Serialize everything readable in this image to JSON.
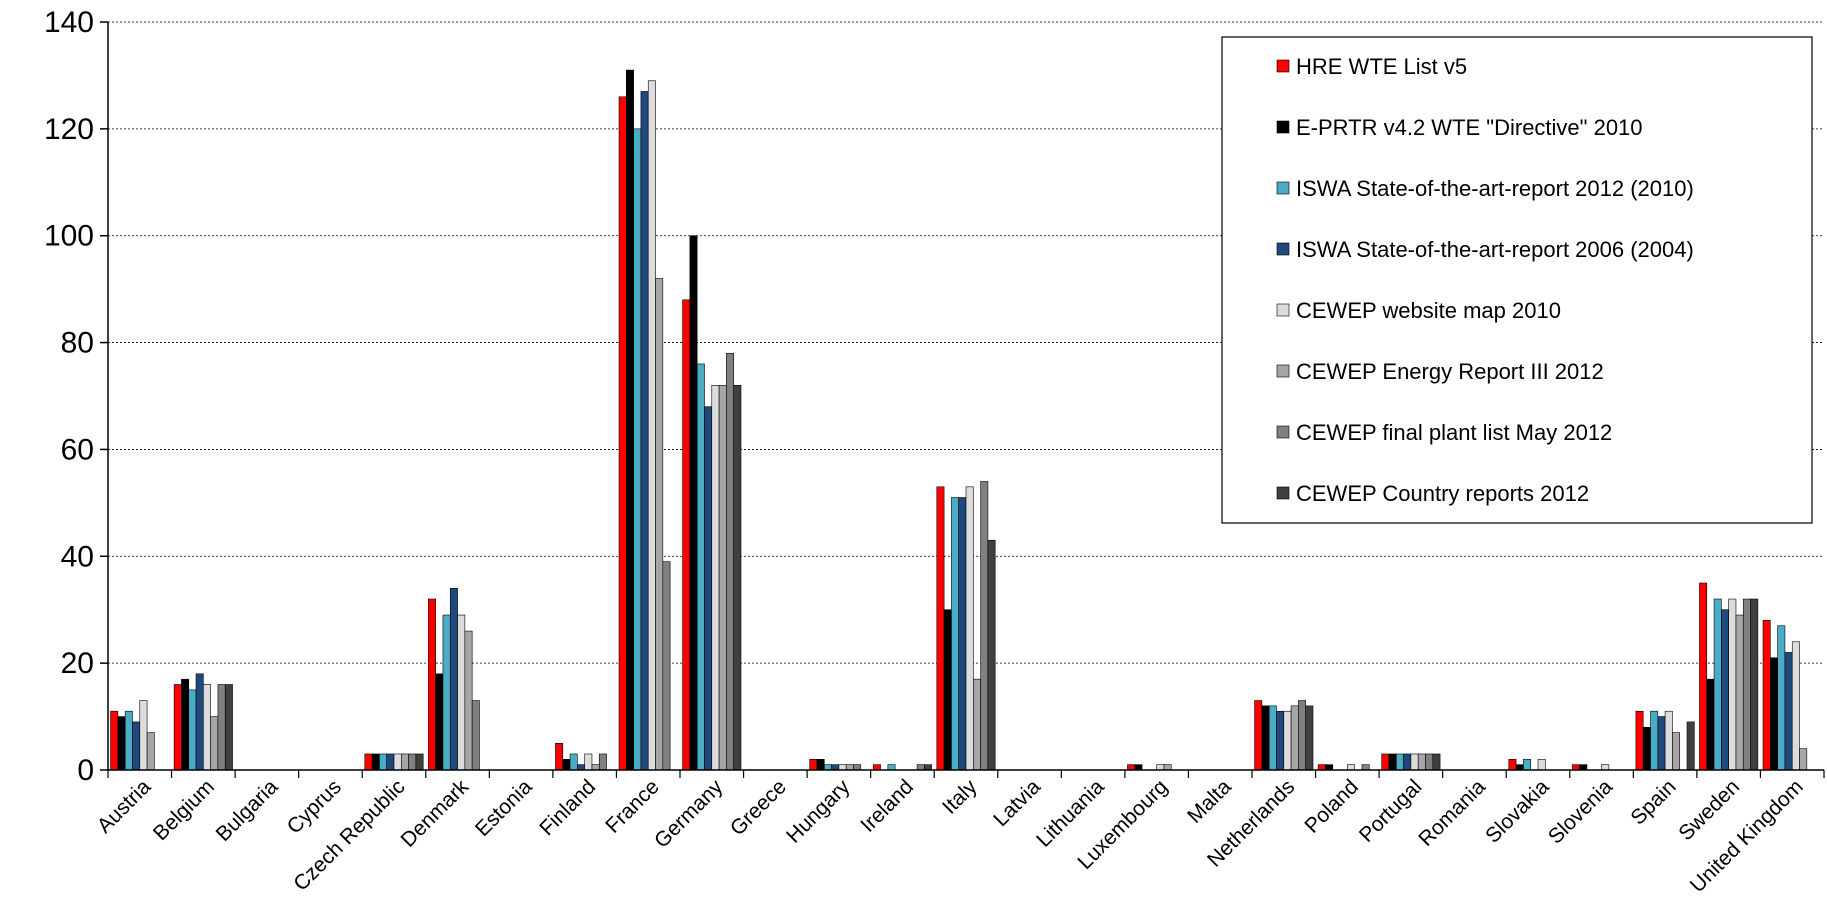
{
  "chart_data": {
    "type": "bar",
    "title": "",
    "xlabel": "",
    "ylabel": "",
    "ylim": [
      0,
      140
    ],
    "yticks": [
      0,
      20,
      40,
      60,
      80,
      100,
      120,
      140
    ],
    "grid": true,
    "legend_position": "top-right",
    "categories": [
      "Austria",
      "Belgium",
      "Bulgaria",
      "Cyprus",
      "Czech Republic",
      "Denmark",
      "Estonia",
      "Finland",
      "France",
      "Germany",
      "Greece",
      "Hungary",
      "Ireland",
      "Italy",
      "Latvia",
      "Lithuania",
      "Luxembourg",
      "Malta",
      "Netherlands",
      "Poland",
      "Portugal",
      "Romania",
      "Slovakia",
      "Slovenia",
      "Spain",
      "Sweden",
      "United Kingdom"
    ],
    "series": [
      {
        "name": "HRE WTE List v5",
        "color": "#ff0000",
        "values": [
          11,
          16,
          0,
          0,
          3,
          32,
          0,
          5,
          126,
          88,
          0,
          2,
          1,
          53,
          0,
          0,
          1,
          0,
          13,
          1,
          3,
          0,
          2,
          1,
          11,
          35,
          28
        ]
      },
      {
        "name": "E-PRTR v4.2 WTE \"Directive\" 2010",
        "color": "#000000",
        "values": [
          10,
          17,
          0,
          0,
          3,
          18,
          0,
          2,
          131,
          100,
          0,
          2,
          0,
          30,
          0,
          0,
          1,
          0,
          12,
          1,
          3,
          0,
          1,
          1,
          8,
          17,
          21
        ]
      },
      {
        "name": "ISWA State-of-the-art-report 2012 (2010)",
        "color": "#4bacc6",
        "values": [
          11,
          15,
          0,
          0,
          3,
          29,
          0,
          3,
          120,
          76,
          0,
          1,
          1,
          51,
          0,
          0,
          0,
          0,
          12,
          0,
          3,
          0,
          2,
          0,
          11,
          32,
          27
        ]
      },
      {
        "name": "ISWA State-of-the-art-report 2006 (2004)",
        "color": "#1f497d",
        "values": [
          9,
          18,
          0,
          0,
          3,
          34,
          0,
          1,
          127,
          68,
          0,
          1,
          0,
          51,
          0,
          0,
          0,
          0,
          11,
          0,
          3,
          0,
          0,
          0,
          10,
          30,
          22
        ]
      },
      {
        "name": "CEWEP website map 2010",
        "color": "#dcdcdc",
        "values": [
          13,
          16,
          0,
          0,
          3,
          29,
          0,
          3,
          129,
          72,
          0,
          1,
          0,
          53,
          0,
          0,
          1,
          0,
          11,
          1,
          3,
          0,
          2,
          1,
          11,
          32,
          24
        ]
      },
      {
        "name": "CEWEP Energy Report III 2012",
        "color": "#a6a6a6",
        "values": [
          7,
          10,
          0,
          0,
          3,
          26,
          0,
          1,
          92,
          72,
          0,
          1,
          0,
          17,
          0,
          0,
          1,
          0,
          12,
          0,
          3,
          0,
          0,
          0,
          7,
          29,
          4
        ]
      },
      {
        "name": "CEWEP final plant list May 2012",
        "color": "#808080",
        "values": [
          0,
          16,
          0,
          0,
          3,
          13,
          0,
          3,
          39,
          78,
          0,
          1,
          1,
          54,
          0,
          0,
          0,
          0,
          13,
          1,
          3,
          0,
          0,
          0,
          0,
          32,
          0
        ]
      },
      {
        "name": "CEWEP Country reports 2012",
        "color": "#404040",
        "values": [
          0,
          16,
          0,
          0,
          3,
          0,
          0,
          0,
          0,
          72,
          0,
          0,
          1,
          43,
          0,
          0,
          0,
          0,
          12,
          0,
          3,
          0,
          0,
          0,
          9,
          32,
          0
        ]
      }
    ]
  }
}
